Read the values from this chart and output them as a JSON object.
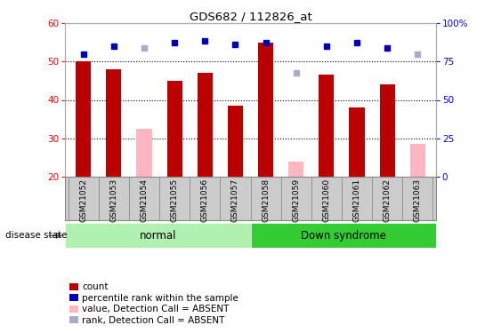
{
  "title": "GDS682 / 112826_at",
  "samples": [
    "GSM21052",
    "GSM21053",
    "GSM21054",
    "GSM21055",
    "GSM21056",
    "GSM21057",
    "GSM21058",
    "GSM21059",
    "GSM21060",
    "GSM21061",
    "GSM21062",
    "GSM21063"
  ],
  "bar_values": [
    50.0,
    48.0,
    null,
    45.0,
    47.0,
    38.5,
    55.0,
    null,
    46.5,
    38.0,
    44.0,
    null
  ],
  "absent_values": [
    null,
    null,
    32.5,
    null,
    null,
    null,
    null,
    24.0,
    null,
    null,
    null,
    28.5
  ],
  "blue_markers": [
    52.0,
    54.0,
    null,
    55.0,
    55.5,
    54.5,
    55.0,
    null,
    54.0,
    55.0,
    53.5,
    null
  ],
  "absent_blue_markers": [
    null,
    null,
    53.5,
    null,
    null,
    null,
    null,
    47.0,
    null,
    null,
    null,
    52.0
  ],
  "ylim": [
    20,
    60
  ],
  "yticks": [
    20,
    30,
    40,
    50,
    60
  ],
  "right_yticks_labels": [
    "0",
    "25",
    "50",
    "75",
    "100%"
  ],
  "right_ytick_positions": [
    20,
    30,
    40,
    50,
    60
  ],
  "group_normal_indices": [
    0,
    1,
    2,
    3,
    4,
    5
  ],
  "group_down_indices": [
    6,
    7,
    8,
    9,
    10,
    11
  ],
  "group_normal_label": "normal",
  "group_down_label": "Down syndrome",
  "disease_state_label": "disease state",
  "bar_color_red": "#bb0000",
  "bar_color_pink": "#ffb6c1",
  "marker_color_blue": "#0000bb",
  "marker_color_lightblue": "#aaaacc",
  "legend_items": [
    {
      "color": "#bb0000",
      "label": "count"
    },
    {
      "color": "#0000bb",
      "label": "percentile rank within the sample"
    },
    {
      "color": "#ffb6c1",
      "label": "value, Detection Call = ABSENT"
    },
    {
      "color": "#aaaacc",
      "label": "rank, Detection Call = ABSENT"
    }
  ],
  "bar_width": 0.5,
  "background_color": "#ffffff",
  "normal_color": "#b0f0b0",
  "down_color": "#33cc33",
  "xtick_bg_color": "#cccccc",
  "xtick_border_color": "#888888"
}
